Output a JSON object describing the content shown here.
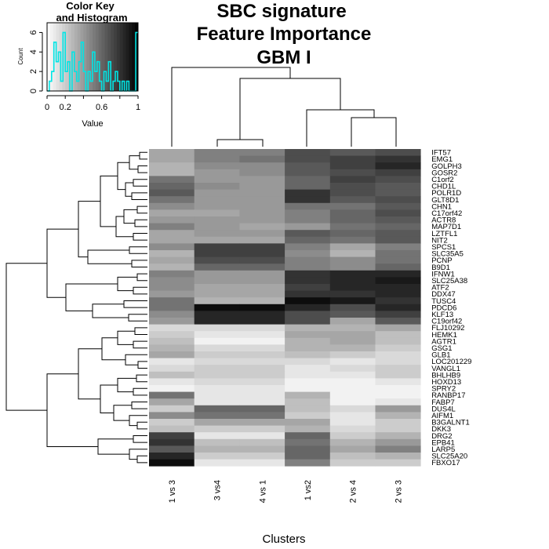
{
  "chart_data": {
    "type": "heatmap",
    "title": [
      "SBC signature",
      "Feature Importance",
      "GBM I"
    ],
    "xlabel": "Clusters",
    "columns": [
      "1 vs 3",
      "3 vs4",
      "4 vs 1",
      "1 vs2",
      "2 vs 4",
      "2 vs 3"
    ],
    "rows": [
      "IFT57",
      "EMG1",
      "GOLPH3",
      "GOSR2",
      "C1orf2",
      "CHD1L",
      "POLR1D",
      "GLT8D1",
      "CHN1",
      "C17orf42",
      "ACTR8",
      "MAP7D1",
      "LZTFL1",
      "NIT2",
      "SPCS1",
      "SLC35A5",
      "PCNP",
      "B9D1",
      "IFNW1",
      "SLC25A38",
      "ATF2",
      "DDX47",
      "TUSC4",
      "PDCD6",
      "KLF13",
      "C19orf42",
      "FLJ10292",
      "HEMK1",
      "AGTR1",
      "GSG1",
      "GLB1",
      "LOC201229",
      "VANGL1",
      "BHLHB9",
      "HOXD13",
      "SPRY2",
      "RANBP17",
      "FABP7",
      "DUS4L",
      "AIFM1",
      "B3GALNT1",
      "DKK3",
      "DRG2",
      "EPB41",
      "LARP5",
      "SLC25A20",
      "FBXO17"
    ],
    "values": [
      [
        0.35,
        0.5,
        0.5,
        0.7,
        0.65,
        0.7
      ],
      [
        0.35,
        0.5,
        0.55,
        0.7,
        0.75,
        0.8
      ],
      [
        0.3,
        0.45,
        0.45,
        0.65,
        0.75,
        0.85
      ],
      [
        0.3,
        0.4,
        0.45,
        0.65,
        0.7,
        0.75
      ],
      [
        0.55,
        0.4,
        0.4,
        0.6,
        0.75,
        0.7
      ],
      [
        0.6,
        0.45,
        0.4,
        0.6,
        0.7,
        0.65
      ],
      [
        0.65,
        0.4,
        0.4,
        0.8,
        0.7,
        0.65
      ],
      [
        0.55,
        0.4,
        0.4,
        0.8,
        0.65,
        0.7
      ],
      [
        0.45,
        0.4,
        0.4,
        0.55,
        0.55,
        0.65
      ],
      [
        0.35,
        0.35,
        0.4,
        0.5,
        0.6,
        0.7
      ],
      [
        0.4,
        0.4,
        0.4,
        0.5,
        0.6,
        0.65
      ],
      [
        0.5,
        0.4,
        0.35,
        0.4,
        0.55,
        0.6
      ],
      [
        0.35,
        0.4,
        0.4,
        0.65,
        0.6,
        0.65
      ],
      [
        0.35,
        0.35,
        0.35,
        0.6,
        0.55,
        0.65
      ],
      [
        0.45,
        0.75,
        0.75,
        0.5,
        0.35,
        0.5
      ],
      [
        0.3,
        0.75,
        0.75,
        0.45,
        0.3,
        0.55
      ],
      [
        0.35,
        0.7,
        0.7,
        0.5,
        0.45,
        0.55
      ],
      [
        0.3,
        0.6,
        0.6,
        0.5,
        0.45,
        0.6
      ],
      [
        0.5,
        0.4,
        0.4,
        0.8,
        0.85,
        0.85
      ],
      [
        0.45,
        0.4,
        0.4,
        0.8,
        0.85,
        0.9
      ],
      [
        0.45,
        0.35,
        0.35,
        0.75,
        0.85,
        0.85
      ],
      [
        0.4,
        0.35,
        0.35,
        0.8,
        0.8,
        0.85
      ],
      [
        0.55,
        0.3,
        0.3,
        0.95,
        0.9,
        0.8
      ],
      [
        0.55,
        0.95,
        0.95,
        0.85,
        0.7,
        0.85
      ],
      [
        0.45,
        0.85,
        0.85,
        0.7,
        0.65,
        0.75
      ],
      [
        0.4,
        0.85,
        0.85,
        0.7,
        0.35,
        0.65
      ],
      [
        0.15,
        0.15,
        0.15,
        0.3,
        0.3,
        0.35
      ],
      [
        0.2,
        0.1,
        0.1,
        0.35,
        0.35,
        0.25
      ],
      [
        0.25,
        0.05,
        0.05,
        0.3,
        0.35,
        0.25
      ],
      [
        0.3,
        0.15,
        0.15,
        0.3,
        0.3,
        0.2
      ],
      [
        0.35,
        0.2,
        0.2,
        0.25,
        0.2,
        0.15
      ],
      [
        0.1,
        0.15,
        0.15,
        0.15,
        0.1,
        0.15
      ],
      [
        0.15,
        0.2,
        0.2,
        0.1,
        0.15,
        0.2
      ],
      [
        0.25,
        0.2,
        0.2,
        0.1,
        0.1,
        0.2
      ],
      [
        0.1,
        0.15,
        0.15,
        0.05,
        0.05,
        0.1
      ],
      [
        0.05,
        0.1,
        0.1,
        0.05,
        0.05,
        0.05
      ],
      [
        0.55,
        0.1,
        0.1,
        0.3,
        0.05,
        0.05
      ],
      [
        0.35,
        0.1,
        0.1,
        0.25,
        0.05,
        0.1
      ],
      [
        0.2,
        0.6,
        0.6,
        0.25,
        0.15,
        0.4
      ],
      [
        0.45,
        0.55,
        0.55,
        0.2,
        0.1,
        0.3
      ],
      [
        0.2,
        0.35,
        0.35,
        0.35,
        0.1,
        0.2
      ],
      [
        0.25,
        0.2,
        0.2,
        0.3,
        0.15,
        0.2
      ],
      [
        0.75,
        0.1,
        0.1,
        0.6,
        0.2,
        0.3
      ],
      [
        0.8,
        0.25,
        0.25,
        0.55,
        0.3,
        0.4
      ],
      [
        0.65,
        0.3,
        0.3,
        0.6,
        0.35,
        0.5
      ],
      [
        0.85,
        0.2,
        0.2,
        0.6,
        0.25,
        0.3
      ],
      [
        0.95,
        0.1,
        0.1,
        0.5,
        0.2,
        0.2
      ]
    ],
    "color_key": {
      "title": [
        "Color Key",
        "and Histogram"
      ],
      "ylabel": "Count",
      "xlabel": "Value",
      "xticks": [
        0,
        0.2,
        0.4,
        0.6,
        0.8,
        1
      ],
      "yticks": [
        0,
        2,
        4,
        6
      ],
      "ylim": [
        0,
        7
      ],
      "colormap": "grayscale (0 = white, 1 = black)",
      "histogram_color": "#00e5e5",
      "histogram_counts": [
        0,
        1,
        2,
        5,
        3,
        4,
        1,
        6,
        2,
        3,
        0,
        4,
        2,
        1,
        3,
        5,
        2,
        0,
        2,
        1,
        4,
        2,
        3,
        1,
        0,
        2,
        1,
        3,
        0,
        1,
        2,
        1,
        0,
        1,
        0,
        1,
        0,
        0,
        0,
        6
      ]
    }
  }
}
